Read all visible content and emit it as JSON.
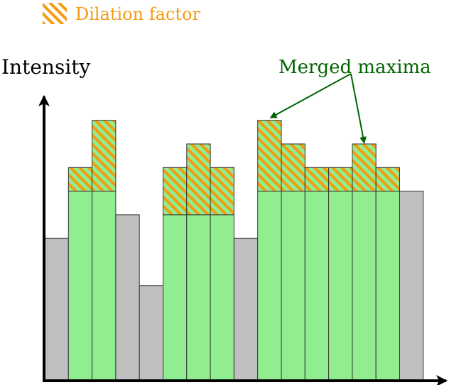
{
  "legend": {
    "label": "Dilation factor"
  },
  "axis": {
    "y_label": "Intensity"
  },
  "annotation": {
    "label": "Merged maxima"
  },
  "colors": {
    "base_gray": "#bfbfbf",
    "base_green": "#90ee90",
    "hatch_orange": "#f39c12",
    "annotation_green": "#006400",
    "outline": "#333333"
  },
  "chart_data": {
    "type": "bar",
    "bars": [
      {
        "base": 6.0,
        "dilation": 0.0,
        "region": "background"
      },
      {
        "base": 8.0,
        "dilation": 1.0,
        "region": "maximum"
      },
      {
        "base": 8.0,
        "dilation": 3.0,
        "region": "maximum"
      },
      {
        "base": 7.0,
        "dilation": 0.0,
        "region": "background"
      },
      {
        "base": 4.0,
        "dilation": 0.0,
        "region": "background"
      },
      {
        "base": 7.0,
        "dilation": 2.0,
        "region": "maximum"
      },
      {
        "base": 7.0,
        "dilation": 3.0,
        "region": "maximum"
      },
      {
        "base": 7.0,
        "dilation": 2.0,
        "region": "maximum"
      },
      {
        "base": 6.0,
        "dilation": 0.0,
        "region": "background"
      },
      {
        "base": 8.0,
        "dilation": 3.0,
        "region": "merged"
      },
      {
        "base": 8.0,
        "dilation": 2.0,
        "region": "merged"
      },
      {
        "base": 8.0,
        "dilation": 1.0,
        "region": "merged"
      },
      {
        "base": 8.0,
        "dilation": 1.0,
        "region": "merged"
      },
      {
        "base": 8.0,
        "dilation": 2.0,
        "region": "merged"
      },
      {
        "base": 8.0,
        "dilation": 1.0,
        "region": "merged"
      },
      {
        "base": 8.0,
        "dilation": 0.0,
        "region": "background"
      }
    ],
    "arrow_targets": [
      9,
      13
    ]
  }
}
